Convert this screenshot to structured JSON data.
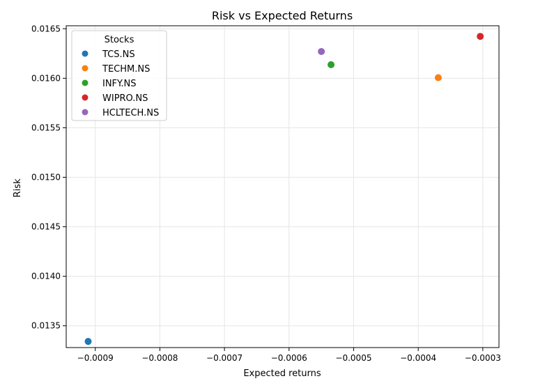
{
  "chart_data": {
    "type": "scatter",
    "title": "Risk vs Expected Returns",
    "xlabel": "Expected returns",
    "ylabel": "Risk",
    "xlim": [
      -0.000945,
      -0.000275
    ],
    "ylim": [
      0.01328,
      0.01653
    ],
    "grid": true,
    "x_ticks": [
      -0.0009,
      -0.0008,
      -0.0007,
      -0.0006,
      -0.0005,
      -0.0004,
      -0.0003
    ],
    "x_tick_labels": [
      "−0.0009",
      "−0.0008",
      "−0.0007",
      "−0.0006",
      "−0.0005",
      "−0.0004",
      "−0.0003"
    ],
    "y_ticks": [
      0.0135,
      0.014,
      0.0145,
      0.015,
      0.0155,
      0.016,
      0.0165
    ],
    "y_tick_labels": [
      "0.0135",
      "0.0140",
      "0.0145",
      "0.0150",
      "0.0155",
      "0.0160",
      "0.0165"
    ],
    "legend": {
      "title": "Stocks",
      "placement": "top-left"
    },
    "series": [
      {
        "name": "TCS.NS",
        "color": "#1f77b4",
        "x": [
          -0.000911
        ],
        "y": [
          0.013342
        ]
      },
      {
        "name": "TECHM.NS",
        "color": "#ff7f0e",
        "x": [
          -0.000369
        ],
        "y": [
          0.016006
        ]
      },
      {
        "name": "INFY.NS",
        "color": "#2ca02c",
        "x": [
          -0.000535
        ],
        "y": [
          0.016137
        ]
      },
      {
        "name": "WIPRO.NS",
        "color": "#d62728",
        "x": [
          -0.000304
        ],
        "y": [
          0.016423
        ]
      },
      {
        "name": "HCLTECH.NS",
        "color": "#9467bd",
        "x": [
          -0.00055
        ],
        "y": [
          0.01627
        ]
      }
    ]
  }
}
